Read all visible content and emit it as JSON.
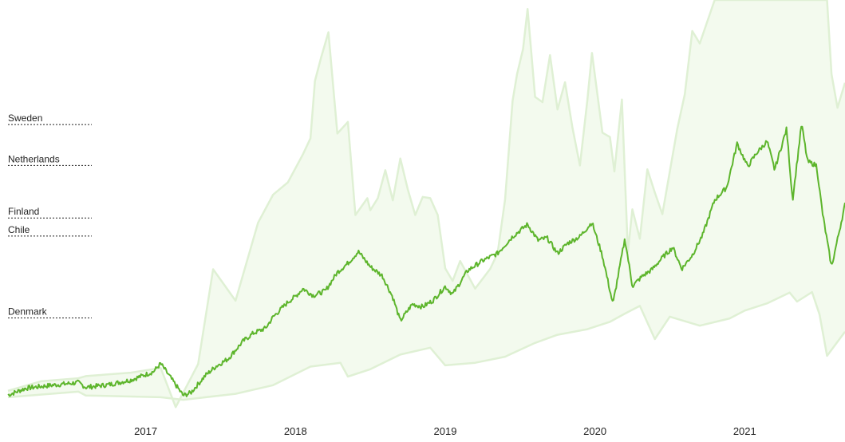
{
  "chart_data": {
    "type": "area",
    "title": "",
    "xlabel": "",
    "ylabel": "",
    "x_tick_labels": [
      "2017",
      "2018",
      "2019",
      "2020",
      "2021"
    ],
    "x_tick_values": [
      2017.0,
      2018.0,
      2019.0,
      2020.0,
      2021.0
    ],
    "xlim": [
      2016.08,
      2021.67
    ],
    "ylim": [
      0,
      100
    ],
    "grid": false,
    "reference_lines": [
      {
        "label": "Sweden",
        "value": 71.1
      },
      {
        "label": "Netherlands",
        "value": 61.6
      },
      {
        "label": "Finland",
        "value": 49.4
      },
      {
        "label": "Chile",
        "value": 45.2
      },
      {
        "label": "Denmark",
        "value": 26.2
      }
    ],
    "band_top": {
      "x": [
        2016.08,
        2016.3,
        2016.55,
        2016.6,
        2016.9,
        2017.1,
        2017.2,
        2017.35,
        2017.45,
        2017.6,
        2017.75,
        2017.85,
        2017.95,
        2018.05,
        2018.1,
        2018.13,
        2018.17,
        2018.22,
        2018.28,
        2018.35,
        2018.4,
        2018.48,
        2018.5,
        2018.55,
        2018.6,
        2018.65,
        2018.7,
        2018.75,
        2018.8,
        2018.85,
        2018.9,
        2018.95,
        2019.0,
        2019.05,
        2019.1,
        2019.2,
        2019.3,
        2019.35,
        2019.4,
        2019.45,
        2019.48,
        2019.52,
        2019.55,
        2019.6,
        2019.65,
        2019.7,
        2019.75,
        2019.8,
        2019.85,
        2019.9,
        2019.95,
        2019.98,
        2020.05,
        2020.1,
        2020.13,
        2020.18,
        2020.22,
        2020.25,
        2020.3,
        2020.35,
        2020.4,
        2020.45,
        2020.55,
        2020.6,
        2020.65,
        2020.7,
        2020.75,
        2020.8,
        2020.85,
        2020.9,
        2020.95,
        2021.0,
        2021.03,
        2021.08,
        2021.15,
        2021.25,
        2021.4,
        2021.45,
        2021.52,
        2021.55,
        2021.58,
        2021.62,
        2021.67
      ],
      "y": [
        9.3,
        11.5,
        12.2,
        12.7,
        13.5,
        14.6,
        5.5,
        15.5,
        37.5,
        30.2,
        48.3,
        54.8,
        57.7,
        64.2,
        67.9,
        81.2,
        86.5,
        92.5,
        69.0,
        71.7,
        50.1,
        54.0,
        51.2,
        54.0,
        60.5,
        53.5,
        63.2,
        56.1,
        50.1,
        54.3,
        54.0,
        50.1,
        37.7,
        34.8,
        39.4,
        33.0,
        37.6,
        41.2,
        53.7,
        76.6,
        82.8,
        88.6,
        97.9,
        77.5,
        76.3,
        87.2,
        74.6,
        80.9,
        70.3,
        61.6,
        76.9,
        87.7,
        69.2,
        68.2,
        60.2,
        76.9,
        41.5,
        51.4,
        44.6,
        60.7,
        55.3,
        50.3,
        70.1,
        78.1,
        92.8,
        89.9,
        95.0,
        100.0,
        100.0,
        100.0,
        100.0,
        100.0,
        100.0,
        100.0,
        100.0,
        100.0,
        100.0,
        100.0,
        100.0,
        100.0,
        82.8,
        75.0,
        80.8
      ]
    },
    "band_bottom": {
      "x": [
        2016.08,
        2016.55,
        2016.6,
        2017.1,
        2017.25,
        2017.6,
        2017.85,
        2018.1,
        2018.3,
        2018.35,
        2018.5,
        2018.7,
        2018.9,
        2019.0,
        2019.2,
        2019.4,
        2019.6,
        2019.75,
        2019.95,
        2020.1,
        2020.2,
        2020.3,
        2020.4,
        2020.5,
        2020.7,
        2020.9,
        2021.0,
        2021.15,
        2021.3,
        2021.35,
        2021.45,
        2021.5,
        2021.55,
        2021.67
      ],
      "y": [
        7.8,
        9.1,
        8.2,
        7.8,
        7.2,
        8.6,
        10.6,
        14.9,
        15.8,
        12.6,
        14.3,
        17.7,
        19.3,
        15.2,
        15.8,
        17.2,
        20.4,
        22.3,
        23.6,
        25.3,
        27.2,
        29.0,
        21.3,
        26.5,
        24.4,
        26.1,
        27.9,
        29.6,
        32.1,
        30.0,
        32.2,
        27.0,
        17.4,
        23.0
      ]
    },
    "series": [
      {
        "x": [
          2016.08,
          2016.2,
          2016.35,
          2016.55,
          2016.6,
          2016.75,
          2016.9,
          2017.05,
          2017.1,
          2017.25,
          2017.3,
          2017.4,
          2017.47,
          2017.55,
          2017.65,
          2017.72,
          2017.8,
          2017.85,
          2017.95,
          2018.0,
          2018.05,
          2018.12,
          2018.2,
          2018.28,
          2018.35,
          2018.42,
          2018.5,
          2018.58,
          2018.65,
          2018.7,
          2018.78,
          2018.85,
          2018.92,
          2019.0,
          2019.05,
          2019.15,
          2019.25,
          2019.35,
          2019.45,
          2019.55,
          2019.62,
          2019.68,
          2019.75,
          2019.82,
          2019.9,
          2019.98,
          2020.05,
          2020.12,
          2020.2,
          2020.25,
          2020.32,
          2020.38,
          2020.45,
          2020.52,
          2020.58,
          2020.65,
          2020.72,
          2020.8,
          2020.88,
          2020.95,
          2021.02,
          2021.08,
          2021.15,
          2021.2,
          2021.28,
          2021.32,
          2021.38,
          2021.42,
          2021.48,
          2021.52,
          2021.58,
          2021.67
        ],
        "y": [
          8.3,
          9.9,
          10.5,
          11.2,
          10.1,
          10.7,
          11.8,
          13.7,
          15.6,
          8.2,
          8.8,
          12.9,
          15.0,
          16.7,
          20.8,
          22.7,
          23.8,
          26.4,
          29.9,
          31.2,
          33.0,
          31.4,
          32.5,
          36.8,
          38.9,
          41.6,
          38.1,
          36.0,
          31.0,
          25.5,
          29.4,
          28.8,
          30.3,
          33.5,
          31.7,
          37.2,
          39.5,
          41.2,
          45.1,
          47.9,
          44.2,
          44.8,
          41.2,
          43.6,
          45.1,
          48.4,
          40.6,
          29.4,
          44.6,
          33.6,
          36.0,
          37.4,
          40.2,
          42.6,
          37.6,
          40.8,
          45.5,
          53.6,
          56.5,
          66.7,
          61.3,
          64.5,
          67.2,
          60.6,
          70.1,
          53.5,
          71.3,
          62.5,
          61.6,
          50.5,
          38.0,
          52.5
        ]
      }
    ],
    "colors": {
      "line": "#5db52c",
      "band_fill": "#f3faee",
      "band_edge": "#dff0d4",
      "reference_line": "#222222",
      "text": "#222222"
    }
  }
}
